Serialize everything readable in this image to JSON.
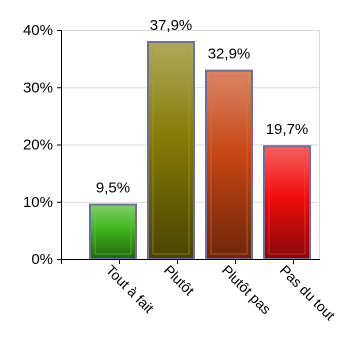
{
  "chart_data": {
    "type": "bar",
    "categories": [
      "Tout à fait",
      "Plutôt",
      "Plutôt pas",
      "Pas du tout"
    ],
    "values": [
      9.5,
      37.9,
      32.9,
      19.7
    ],
    "value_labels": [
      "9,5%",
      "37,9%",
      "32,9%",
      "19,7%"
    ],
    "bar_colors": [
      "#3fb51a",
      "#847a05",
      "#c64514",
      "#f00c0c"
    ],
    "title": "",
    "xlabel": "",
    "ylabel": "",
    "ylim": [
      0,
      40
    ],
    "yticks": [
      0,
      10,
      20,
      30,
      40
    ],
    "ytick_labels": [
      "0%",
      "10%",
      "20%",
      "30%",
      "40%"
    ],
    "grid": true,
    "legend": "none"
  }
}
